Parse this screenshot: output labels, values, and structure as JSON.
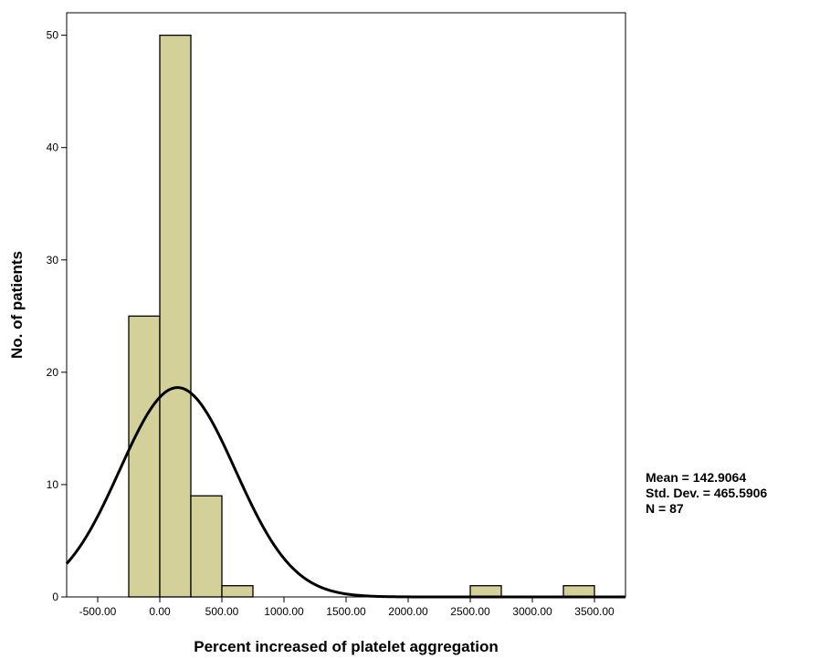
{
  "chart_data": {
    "type": "bar",
    "xlabel": "Percent increased of platelet aggregation",
    "ylabel": "No. of patients",
    "bin_width": 250,
    "bins": [
      {
        "start": -250,
        "end": 0,
        "count": 25
      },
      {
        "start": 0,
        "end": 250,
        "count": 50
      },
      {
        "start": 250,
        "end": 500,
        "count": 9
      },
      {
        "start": 500,
        "end": 750,
        "count": 1
      },
      {
        "start": 2500,
        "end": 2750,
        "count": 1
      },
      {
        "start": 3250,
        "end": 3500,
        "count": 1
      }
    ],
    "normal_curve": {
      "mean": 142.9064,
      "std_dev": 465.5906,
      "n": 87
    },
    "xlim": [
      -750,
      3750
    ],
    "ylim": [
      0,
      52
    ],
    "x_ticks": [
      -500,
      0,
      500,
      1000,
      1500,
      2000,
      2500,
      3000,
      3500
    ],
    "x_tick_labels": [
      "-500.00",
      "0.00",
      "500.00",
      "1000.00",
      "1500.00",
      "2000.00",
      "2500.00",
      "3000.00",
      "3500.00"
    ],
    "y_ticks": [
      0,
      10,
      20,
      30,
      40,
      50
    ],
    "y_tick_labels": [
      "0",
      "10",
      "20",
      "30",
      "40",
      "50"
    ],
    "bar_fill": "#d4d09a",
    "bar_stroke": "#000000",
    "grid": false,
    "legend": "none"
  },
  "stats": {
    "mean": "Mean = 142.9064",
    "std_dev": "Std. Dev. = 465.5906",
    "n": "N = 87"
  }
}
